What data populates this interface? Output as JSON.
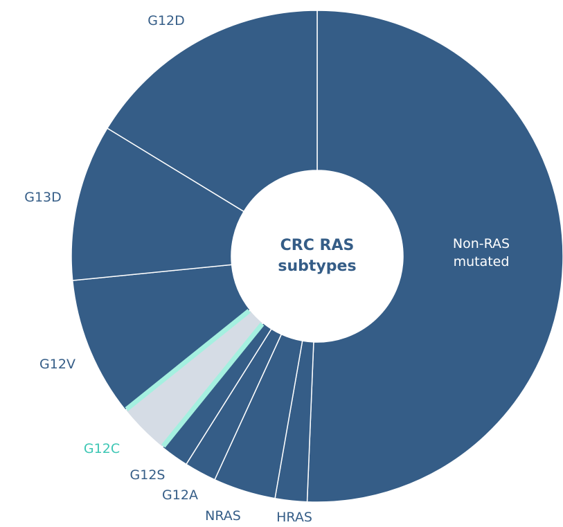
{
  "chart_data": {
    "type": "donut",
    "title": "CRC RAS subtypes",
    "categories": [
      "Non-RAS mutated",
      "HRAS",
      "NRAS",
      "G12A",
      "G12S",
      "G12C",
      "G12V",
      "G13D",
      "G12D"
    ],
    "values": [
      50.7,
      2.1,
      4.1,
      2.1,
      1.9,
      3.4,
      9.2,
      10.3,
      16.3
    ],
    "colors": [
      "#355d87",
      "#355d87",
      "#355d87",
      "#355d87",
      "#355d87",
      "#d5dce5",
      "#355d87",
      "#355d87",
      "#355d87"
    ],
    "label_colors": [
      "#ffffff",
      "#355d87",
      "#355d87",
      "#355d87",
      "#355d87",
      "#3cc6b4",
      "#355d87",
      "#355d87",
      "#355d87"
    ],
    "highlight_color": "#a5f0e0"
  }
}
